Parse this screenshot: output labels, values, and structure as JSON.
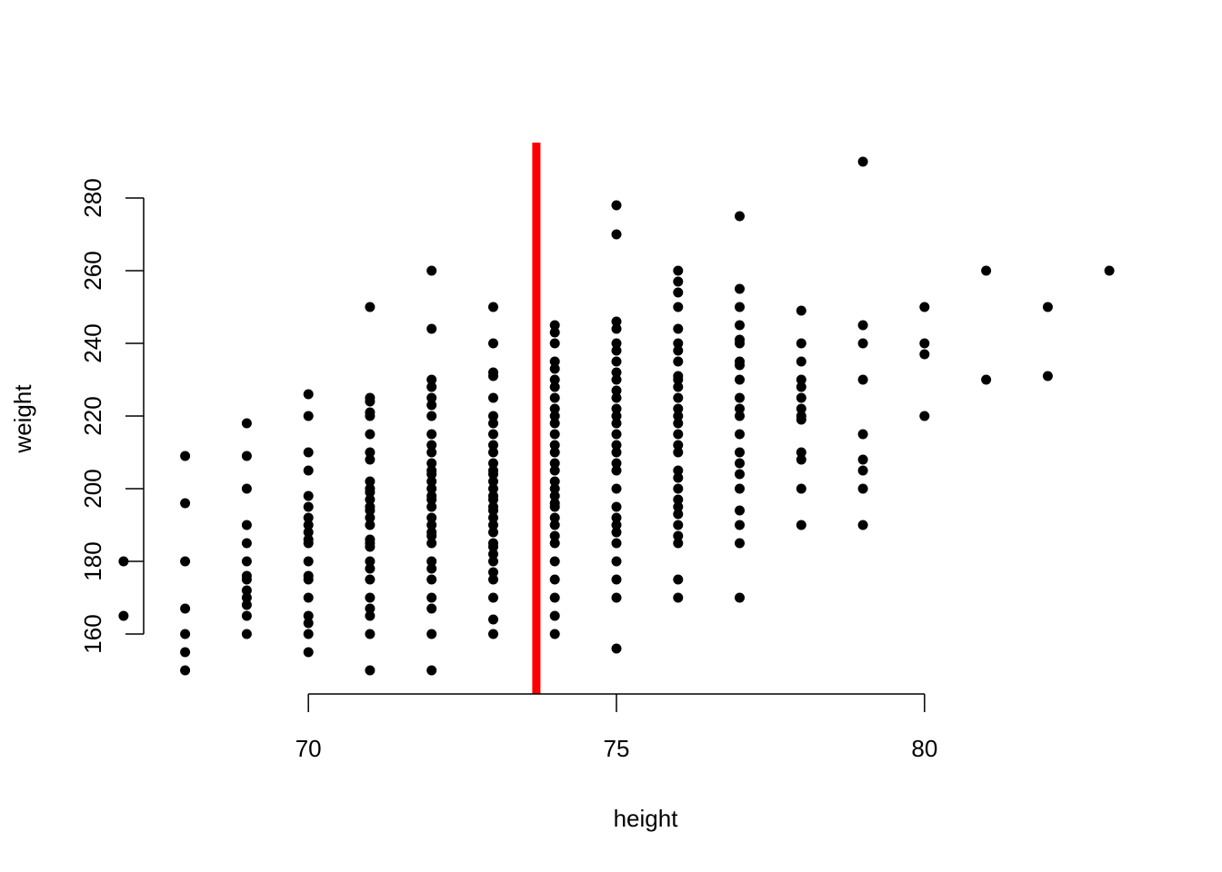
{
  "chart_data": {
    "type": "scatter",
    "title": "",
    "xlabel": "height",
    "ylabel": "weight",
    "xlim": [
      66.5,
      83.5
    ],
    "ylim": [
      144,
      296
    ],
    "x_ticks": [
      70,
      75,
      80
    ],
    "y_ticks": [
      160,
      180,
      200,
      220,
      240,
      260,
      280
    ],
    "x_tick_labels": [
      "70",
      "75",
      "80"
    ],
    "y_tick_labels": [
      "160",
      "180",
      "200",
      "220",
      "240",
      "260",
      "280"
    ],
    "grid": false,
    "legend": "none",
    "point_color": "#000000",
    "vline": {
      "x": 73.7,
      "color": "#ff0000"
    },
    "points": [
      [
        67,
        165
      ],
      [
        67,
        180
      ],
      [
        68,
        150
      ],
      [
        68,
        155
      ],
      [
        68,
        160
      ],
      [
        68,
        167
      ],
      [
        68,
        180
      ],
      [
        68,
        196
      ],
      [
        68,
        209
      ],
      [
        69,
        160
      ],
      [
        69,
        165
      ],
      [
        69,
        168
      ],
      [
        69,
        170
      ],
      [
        69,
        172
      ],
      [
        69,
        175
      ],
      [
        69,
        176
      ],
      [
        69,
        180
      ],
      [
        69,
        185
      ],
      [
        69,
        190
      ],
      [
        69,
        200
      ],
      [
        69,
        209
      ],
      [
        69,
        218
      ],
      [
        70,
        155
      ],
      [
        70,
        160
      ],
      [
        70,
        163
      ],
      [
        70,
        165
      ],
      [
        70,
        170
      ],
      [
        70,
        175
      ],
      [
        70,
        176
      ],
      [
        70,
        180
      ],
      [
        70,
        185
      ],
      [
        70,
        186
      ],
      [
        70,
        188
      ],
      [
        70,
        190
      ],
      [
        70,
        192
      ],
      [
        70,
        195
      ],
      [
        70,
        198
      ],
      [
        70,
        205
      ],
      [
        70,
        210
      ],
      [
        70,
        220
      ],
      [
        70,
        226
      ],
      [
        71,
        150
      ],
      [
        71,
        160
      ],
      [
        71,
        165
      ],
      [
        71,
        167
      ],
      [
        71,
        170
      ],
      [
        71,
        175
      ],
      [
        71,
        178
      ],
      [
        71,
        180
      ],
      [
        71,
        184
      ],
      [
        71,
        185
      ],
      [
        71,
        186
      ],
      [
        71,
        190
      ],
      [
        71,
        192
      ],
      [
        71,
        194
      ],
      [
        71,
        195
      ],
      [
        71,
        197
      ],
      [
        71,
        199
      ],
      [
        71,
        200
      ],
      [
        71,
        202
      ],
      [
        71,
        208
      ],
      [
        71,
        210
      ],
      [
        71,
        215
      ],
      [
        71,
        220
      ],
      [
        71,
        221
      ],
      [
        71,
        224
      ],
      [
        71,
        225
      ],
      [
        71,
        250
      ],
      [
        72,
        150
      ],
      [
        72,
        160
      ],
      [
        72,
        167
      ],
      [
        72,
        170
      ],
      [
        72,
        175
      ],
      [
        72,
        178
      ],
      [
        72,
        180
      ],
      [
        72,
        185
      ],
      [
        72,
        187
      ],
      [
        72,
        188
      ],
      [
        72,
        190
      ],
      [
        72,
        192
      ],
      [
        72,
        195
      ],
      [
        72,
        197
      ],
      [
        72,
        198
      ],
      [
        72,
        200
      ],
      [
        72,
        202
      ],
      [
        72,
        204
      ],
      [
        72,
        205
      ],
      [
        72,
        207
      ],
      [
        72,
        210
      ],
      [
        72,
        212
      ],
      [
        72,
        215
      ],
      [
        72,
        220
      ],
      [
        72,
        223
      ],
      [
        72,
        225
      ],
      [
        72,
        228
      ],
      [
        72,
        230
      ],
      [
        72,
        244
      ],
      [
        72,
        260
      ],
      [
        73,
        160
      ],
      [
        73,
        164
      ],
      [
        73,
        170
      ],
      [
        73,
        175
      ],
      [
        73,
        177
      ],
      [
        73,
        180
      ],
      [
        73,
        182
      ],
      [
        73,
        184
      ],
      [
        73,
        185
      ],
      [
        73,
        188
      ],
      [
        73,
        190
      ],
      [
        73,
        192
      ],
      [
        73,
        194
      ],
      [
        73,
        195
      ],
      [
        73,
        197
      ],
      [
        73,
        198
      ],
      [
        73,
        200
      ],
      [
        73,
        202
      ],
      [
        73,
        204
      ],
      [
        73,
        205
      ],
      [
        73,
        207
      ],
      [
        73,
        210
      ],
      [
        73,
        212
      ],
      [
        73,
        215
      ],
      [
        73,
        218
      ],
      [
        73,
        220
      ],
      [
        73,
        225
      ],
      [
        73,
        231
      ],
      [
        73,
        232
      ],
      [
        73,
        240
      ],
      [
        73,
        250
      ],
      [
        74,
        160
      ],
      [
        74,
        165
      ],
      [
        74,
        170
      ],
      [
        74,
        175
      ],
      [
        74,
        180
      ],
      [
        74,
        185
      ],
      [
        74,
        187
      ],
      [
        74,
        190
      ],
      [
        74,
        192
      ],
      [
        74,
        195
      ],
      [
        74,
        196
      ],
      [
        74,
        198
      ],
      [
        74,
        200
      ],
      [
        74,
        202
      ],
      [
        74,
        205
      ],
      [
        74,
        207
      ],
      [
        74,
        210
      ],
      [
        74,
        212
      ],
      [
        74,
        215
      ],
      [
        74,
        218
      ],
      [
        74,
        220
      ],
      [
        74,
        222
      ],
      [
        74,
        225
      ],
      [
        74,
        228
      ],
      [
        74,
        230
      ],
      [
        74,
        233
      ],
      [
        74,
        235
      ],
      [
        74,
        240
      ],
      [
        74,
        243
      ],
      [
        74,
        245
      ],
      [
        75,
        156
      ],
      [
        75,
        170
      ],
      [
        75,
        175
      ],
      [
        75,
        180
      ],
      [
        75,
        185
      ],
      [
        75,
        188
      ],
      [
        75,
        190
      ],
      [
        75,
        192
      ],
      [
        75,
        195
      ],
      [
        75,
        200
      ],
      [
        75,
        205
      ],
      [
        75,
        207
      ],
      [
        75,
        210
      ],
      [
        75,
        212
      ],
      [
        75,
        215
      ],
      [
        75,
        218
      ],
      [
        75,
        220
      ],
      [
        75,
        222
      ],
      [
        75,
        225
      ],
      [
        75,
        227
      ],
      [
        75,
        230
      ],
      [
        75,
        232
      ],
      [
        75,
        235
      ],
      [
        75,
        238
      ],
      [
        75,
        240
      ],
      [
        75,
        244
      ],
      [
        75,
        246
      ],
      [
        75,
        270
      ],
      [
        75,
        278
      ],
      [
        76,
        170
      ],
      [
        76,
        175
      ],
      [
        76,
        185
      ],
      [
        76,
        187
      ],
      [
        76,
        190
      ],
      [
        76,
        193
      ],
      [
        76,
        195
      ],
      [
        76,
        197
      ],
      [
        76,
        200
      ],
      [
        76,
        203
      ],
      [
        76,
        205
      ],
      [
        76,
        210
      ],
      [
        76,
        212
      ],
      [
        76,
        215
      ],
      [
        76,
        218
      ],
      [
        76,
        220
      ],
      [
        76,
        222
      ],
      [
        76,
        225
      ],
      [
        76,
        228
      ],
      [
        76,
        230
      ],
      [
        76,
        231
      ],
      [
        76,
        235
      ],
      [
        76,
        238
      ],
      [
        76,
        240
      ],
      [
        76,
        244
      ],
      [
        76,
        250
      ],
      [
        76,
        254
      ],
      [
        76,
        257
      ],
      [
        76,
        260
      ],
      [
        77,
        170
      ],
      [
        77,
        185
      ],
      [
        77,
        190
      ],
      [
        77,
        194
      ],
      [
        77,
        200
      ],
      [
        77,
        204
      ],
      [
        77,
        207
      ],
      [
        77,
        210
      ],
      [
        77,
        215
      ],
      [
        77,
        220
      ],
      [
        77,
        222
      ],
      [
        77,
        225
      ],
      [
        77,
        230
      ],
      [
        77,
        234
      ],
      [
        77,
        235
      ],
      [
        77,
        240
      ],
      [
        77,
        241
      ],
      [
        77,
        245
      ],
      [
        77,
        250
      ],
      [
        77,
        255
      ],
      [
        77,
        275
      ],
      [
        78,
        190
      ],
      [
        78,
        200
      ],
      [
        78,
        208
      ],
      [
        78,
        210
      ],
      [
        78,
        219
      ],
      [
        78,
        220
      ],
      [
        78,
        222
      ],
      [
        78,
        225
      ],
      [
        78,
        228
      ],
      [
        78,
        230
      ],
      [
        78,
        235
      ],
      [
        78,
        240
      ],
      [
        78,
        249
      ],
      [
        79,
        190
      ],
      [
        79,
        200
      ],
      [
        79,
        205
      ],
      [
        79,
        208
      ],
      [
        79,
        215
      ],
      [
        79,
        230
      ],
      [
        79,
        240
      ],
      [
        79,
        245
      ],
      [
        79,
        290
      ],
      [
        80,
        220
      ],
      [
        80,
        237
      ],
      [
        80,
        240
      ],
      [
        80,
        250
      ],
      [
        81,
        230
      ],
      [
        81,
        260
      ],
      [
        82,
        231
      ],
      [
        82,
        250
      ],
      [
        83,
        260
      ]
    ]
  }
}
